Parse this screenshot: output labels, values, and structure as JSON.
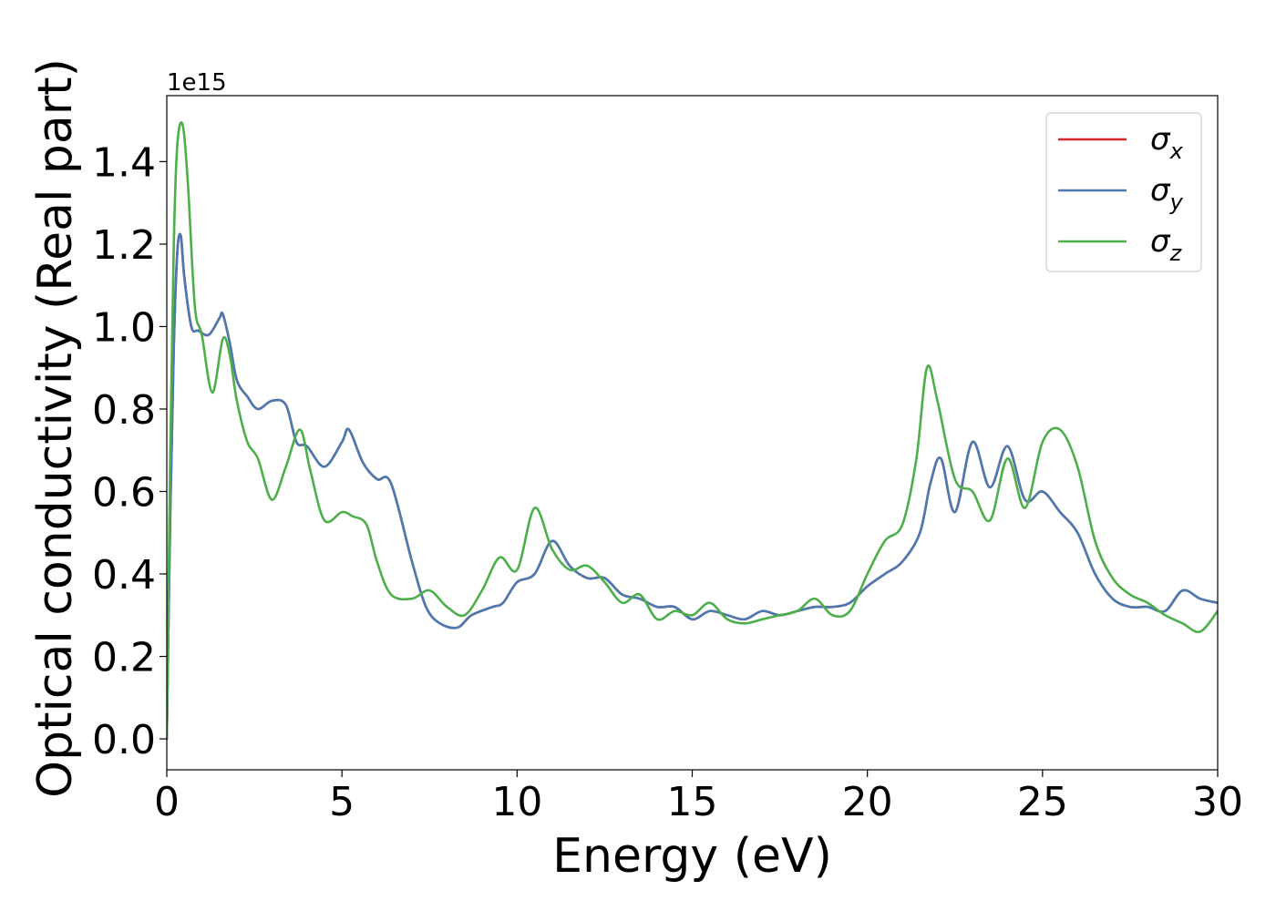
{
  "chart_data": {
    "type": "line",
    "title": "",
    "xlabel": "Energy (eV)",
    "ylabel": "Optical conductivity (Real part)",
    "y_scale_label": "1e15",
    "y_multiplier": 1000000000000000.0,
    "xlim": [
      0,
      30
    ],
    "ylim": [
      -0.075,
      1.56
    ],
    "xticks": [
      0,
      5,
      10,
      15,
      20,
      25,
      30
    ],
    "xtick_labels": [
      "0",
      "5",
      "10",
      "15",
      "20",
      "25",
      "30"
    ],
    "yticks": [
      0.0,
      0.2,
      0.4,
      0.6,
      0.8,
      1.0,
      1.2,
      1.4
    ],
    "ytick_labels": [
      "0.0",
      "0.2",
      "0.4",
      "0.6",
      "0.8",
      "1.0",
      "1.2",
      "1.4"
    ],
    "grid": false,
    "legend_position": "top-right",
    "legend": [
      {
        "base": "σ",
        "sub": "x",
        "color": "#d62728"
      },
      {
        "base": "σ",
        "sub": "y",
        "color": "#4a7ab0"
      },
      {
        "base": "σ",
        "sub": "z",
        "color": "#4daf4a"
      }
    ],
    "series": [
      {
        "name": "σx",
        "color": "#d62728",
        "x": [
          0,
          0.1,
          0.2,
          0.3,
          0.4,
          0.5,
          0.7,
          0.9,
          1.2,
          1.5,
          1.6,
          1.8,
          2.0,
          2.3,
          2.6,
          3.0,
          3.4,
          3.7,
          4.0,
          4.5,
          5.0,
          5.2,
          5.6,
          6.0,
          6.4,
          7.0,
          7.4,
          7.8,
          8.3,
          8.7,
          9.3,
          9.6,
          10.0,
          10.5,
          11.0,
          11.5,
          12.0,
          12.5,
          13.0,
          13.5,
          14.0,
          14.5,
          15.0,
          15.5,
          16.0,
          16.5,
          17.0,
          17.5,
          18.0,
          18.5,
          19.0,
          19.5,
          20.0,
          20.5,
          21.0,
          21.5,
          21.8,
          22.1,
          22.5,
          23.0,
          23.5,
          24.0,
          24.5,
          25.0,
          25.5,
          26.0,
          26.5,
          27.0,
          27.5,
          28.0,
          28.5,
          29.0,
          29.5,
          30.0
        ],
        "y": [
          0.0,
          0.55,
          0.95,
          1.18,
          1.22,
          1.12,
          1.0,
          0.99,
          0.98,
          1.02,
          1.03,
          0.96,
          0.87,
          0.83,
          0.8,
          0.82,
          0.81,
          0.72,
          0.71,
          0.66,
          0.72,
          0.75,
          0.67,
          0.63,
          0.62,
          0.43,
          0.32,
          0.28,
          0.27,
          0.3,
          0.32,
          0.33,
          0.38,
          0.4,
          0.48,
          0.42,
          0.39,
          0.39,
          0.35,
          0.34,
          0.32,
          0.32,
          0.29,
          0.31,
          0.3,
          0.29,
          0.31,
          0.3,
          0.31,
          0.32,
          0.32,
          0.33,
          0.37,
          0.4,
          0.43,
          0.5,
          0.62,
          0.68,
          0.55,
          0.72,
          0.61,
          0.71,
          0.58,
          0.6,
          0.55,
          0.5,
          0.4,
          0.34,
          0.32,
          0.32,
          0.31,
          0.36,
          0.34,
          0.33
        ]
      },
      {
        "name": "σy",
        "color": "#4a7ab0",
        "x": [
          0,
          0.1,
          0.2,
          0.3,
          0.4,
          0.5,
          0.7,
          0.9,
          1.2,
          1.5,
          1.6,
          1.8,
          2.0,
          2.3,
          2.6,
          3.0,
          3.4,
          3.7,
          4.0,
          4.5,
          5.0,
          5.2,
          5.6,
          6.0,
          6.4,
          7.0,
          7.4,
          7.8,
          8.3,
          8.7,
          9.3,
          9.6,
          10.0,
          10.5,
          11.0,
          11.5,
          12.0,
          12.5,
          13.0,
          13.5,
          14.0,
          14.5,
          15.0,
          15.5,
          16.0,
          16.5,
          17.0,
          17.5,
          18.0,
          18.5,
          19.0,
          19.5,
          20.0,
          20.5,
          21.0,
          21.5,
          21.8,
          22.1,
          22.5,
          23.0,
          23.5,
          24.0,
          24.5,
          25.0,
          25.5,
          26.0,
          26.5,
          27.0,
          27.5,
          28.0,
          28.5,
          29.0,
          29.5,
          30.0
        ],
        "y": [
          0.0,
          0.55,
          0.95,
          1.18,
          1.22,
          1.12,
          1.0,
          0.99,
          0.98,
          1.02,
          1.03,
          0.96,
          0.87,
          0.83,
          0.8,
          0.82,
          0.81,
          0.72,
          0.71,
          0.66,
          0.72,
          0.75,
          0.67,
          0.63,
          0.62,
          0.43,
          0.32,
          0.28,
          0.27,
          0.3,
          0.32,
          0.33,
          0.38,
          0.4,
          0.48,
          0.42,
          0.39,
          0.39,
          0.35,
          0.34,
          0.32,
          0.32,
          0.29,
          0.31,
          0.3,
          0.29,
          0.31,
          0.3,
          0.31,
          0.32,
          0.32,
          0.33,
          0.37,
          0.4,
          0.43,
          0.5,
          0.62,
          0.68,
          0.55,
          0.72,
          0.61,
          0.71,
          0.58,
          0.6,
          0.55,
          0.5,
          0.4,
          0.34,
          0.32,
          0.32,
          0.31,
          0.36,
          0.34,
          0.33
        ]
      },
      {
        "name": "σz",
        "color": "#4daf4a",
        "x": [
          0,
          0.1,
          0.2,
          0.3,
          0.45,
          0.6,
          0.8,
          1.0,
          1.3,
          1.6,
          1.8,
          2.0,
          2.3,
          2.6,
          3.0,
          3.4,
          3.8,
          4.1,
          4.5,
          5.0,
          5.3,
          5.7,
          6.0,
          6.4,
          7.0,
          7.5,
          8.0,
          8.5,
          9.0,
          9.5,
          10.0,
          10.5,
          11.0,
          11.5,
          12.0,
          12.5,
          13.0,
          13.5,
          14.0,
          14.5,
          15.0,
          15.5,
          16.0,
          16.5,
          17.0,
          17.5,
          18.0,
          18.5,
          19.0,
          19.5,
          20.0,
          20.5,
          21.0,
          21.4,
          21.7,
          22.0,
          22.5,
          23.0,
          23.5,
          24.0,
          24.5,
          25.0,
          25.5,
          26.0,
          26.5,
          27.0,
          27.5,
          28.0,
          28.5,
          29.0,
          29.5,
          30.0
        ],
        "y": [
          0.0,
          0.7,
          1.2,
          1.44,
          1.49,
          1.35,
          1.05,
          0.98,
          0.84,
          0.97,
          0.93,
          0.82,
          0.72,
          0.68,
          0.58,
          0.66,
          0.75,
          0.65,
          0.53,
          0.55,
          0.54,
          0.52,
          0.43,
          0.35,
          0.34,
          0.36,
          0.32,
          0.3,
          0.36,
          0.44,
          0.41,
          0.56,
          0.46,
          0.41,
          0.42,
          0.38,
          0.33,
          0.35,
          0.29,
          0.31,
          0.3,
          0.33,
          0.29,
          0.28,
          0.29,
          0.3,
          0.31,
          0.34,
          0.3,
          0.31,
          0.4,
          0.48,
          0.52,
          0.68,
          0.9,
          0.82,
          0.63,
          0.6,
          0.53,
          0.68,
          0.56,
          0.72,
          0.75,
          0.66,
          0.48,
          0.39,
          0.35,
          0.33,
          0.3,
          0.28,
          0.26,
          0.31
        ]
      }
    ]
  }
}
